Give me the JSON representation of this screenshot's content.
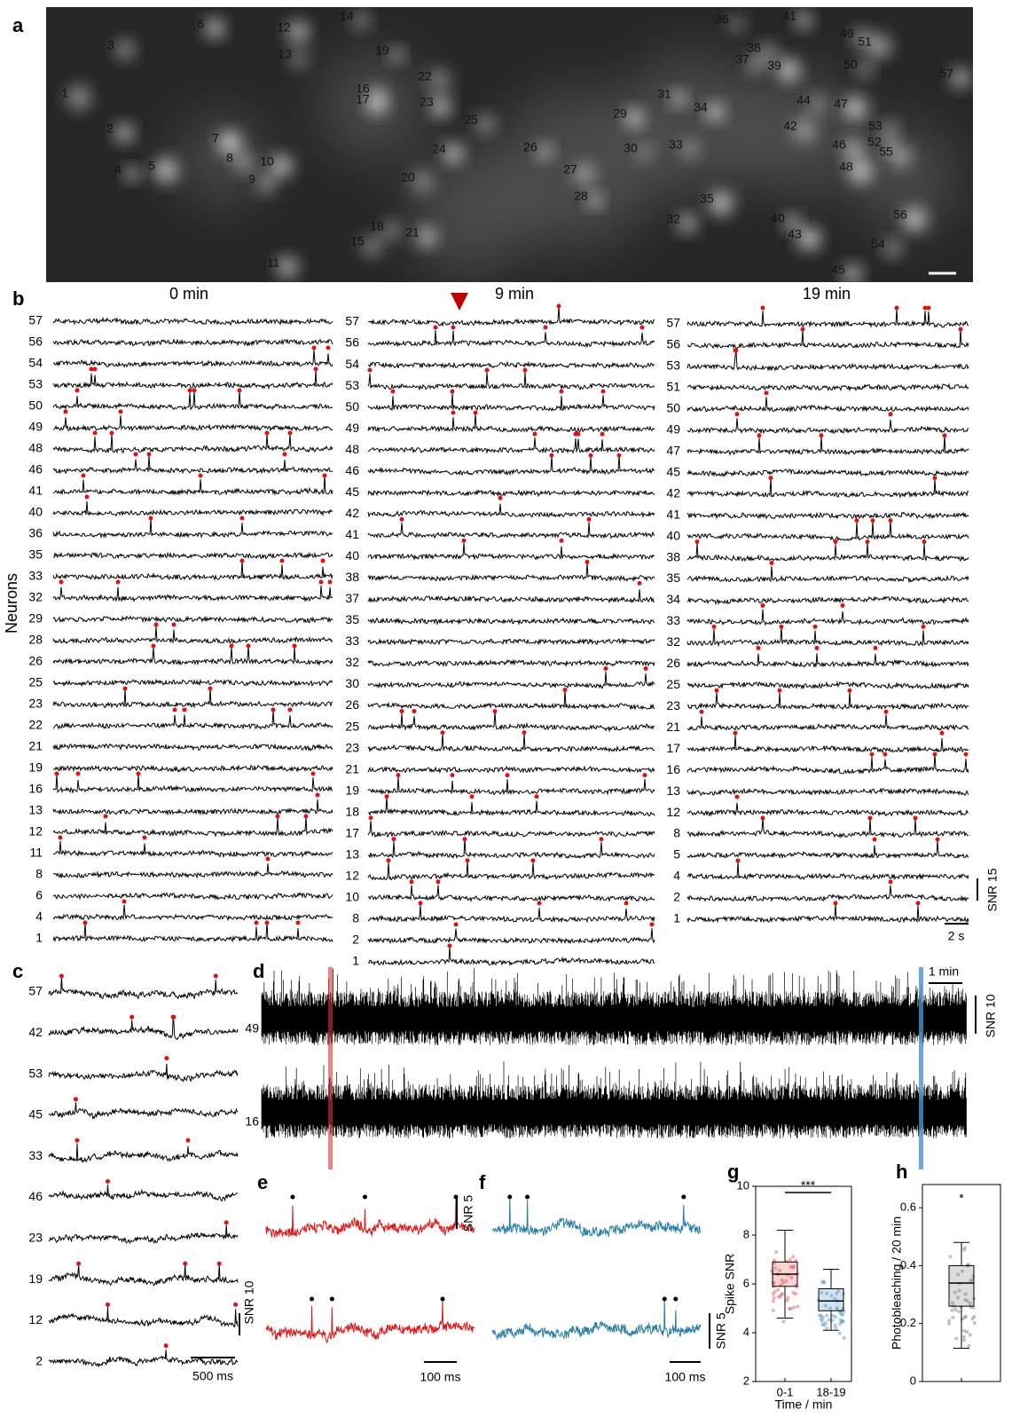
{
  "figure": {
    "panel_letters": [
      "a",
      "b",
      "c",
      "d",
      "e",
      "f",
      "g",
      "h"
    ],
    "a": {
      "neuron_labels": [
        "1",
        "2",
        "3",
        "4",
        "5",
        "6",
        "7",
        "8",
        "9",
        "10",
        "11",
        "12",
        "13",
        "14",
        "15",
        "16",
        "17",
        "18",
        "19",
        "20",
        "21",
        "22",
        "23",
        "24",
        "25",
        "26",
        "27",
        "28",
        "29",
        "30",
        "31",
        "32",
        "33",
        "34",
        "35",
        "36",
        "37",
        "38",
        "39",
        "40",
        "41",
        "42",
        "43",
        "44",
        "45",
        "46",
        "47",
        "48",
        "49",
        "50",
        "51",
        "52",
        "53",
        "54",
        "55",
        "56",
        "57"
      ]
    },
    "b": {
      "headers": [
        "0 min",
        "9 min",
        "19 min"
      ],
      "ylabel": "Neurons",
      "columns": [
        [
          "57",
          "56",
          "54",
          "53",
          "50",
          "49",
          "48",
          "46",
          "41",
          "40",
          "36",
          "35",
          "33",
          "32",
          "29",
          "28",
          "26",
          "25",
          "23",
          "22",
          "21",
          "19",
          "16",
          "13",
          "12",
          "11",
          "8",
          "6",
          "4",
          "1"
        ],
        [
          "57",
          "56",
          "54",
          "53",
          "50",
          "49",
          "48",
          "46",
          "45",
          "42",
          "41",
          "40",
          "38",
          "37",
          "35",
          "33",
          "32",
          "30",
          "26",
          "25",
          "23",
          "21",
          "19",
          "18",
          "17",
          "13",
          "12",
          "10",
          "8",
          "2",
          "1"
        ],
        [
          "57",
          "56",
          "53",
          "51",
          "50",
          "49",
          "47",
          "45",
          "42",
          "41",
          "40",
          "38",
          "35",
          "34",
          "33",
          "32",
          "26",
          "25",
          "23",
          "21",
          "17",
          "16",
          "13",
          "12",
          "8",
          "5",
          "4",
          "2",
          "1"
        ]
      ],
      "scale_y": "SNR 15",
      "scale_x": "2 s"
    },
    "c": {
      "rows": [
        "57",
        "42",
        "53",
        "45",
        "33",
        "46",
        "23",
        "19",
        "12",
        "2"
      ],
      "scale_y": "SNR 10",
      "scale_x": "500 ms"
    },
    "d": {
      "rows": [
        "49",
        "16"
      ],
      "scale_x": "1 min",
      "scale_y": "SNR 10"
    },
    "e": {
      "scale_y": "SNR 5",
      "scale_x": "100 ms"
    },
    "f": {
      "scale_y": "SNR 5",
      "scale_x": "100 ms"
    }
  },
  "chart_data": [
    {
      "type": "box",
      "ylabel": "Spike SNR",
      "xlabel": "Time / min",
      "categories": [
        "0-1",
        "18-19"
      ],
      "ylim": [
        2,
        10
      ],
      "yticks": [
        2,
        4,
        6,
        8,
        10
      ],
      "significance": "***",
      "boxes": [
        {
          "color": "#e05050",
          "whisker_low": 4.6,
          "q1": 5.9,
          "median": 6.4,
          "q3": 6.9,
          "whisker_high": 8.2
        },
        {
          "color": "#4a8fc4",
          "whisker_low": 4.1,
          "q1": 4.9,
          "median": 5.3,
          "q3": 5.8,
          "whisker_high": 6.6
        }
      ]
    },
    {
      "type": "box",
      "ylabel": "Photobleaching / 20 min",
      "ylim": [
        0,
        0.68
      ],
      "yticks": [
        0,
        0.2,
        0.4,
        0.6
      ],
      "boxes": [
        {
          "color": "#777777",
          "whisker_low": 0.115,
          "q1": 0.26,
          "median": 0.34,
          "q3": 0.4,
          "whisker_high": 0.48,
          "outliers": [
            0.64
          ]
        }
      ]
    }
  ]
}
